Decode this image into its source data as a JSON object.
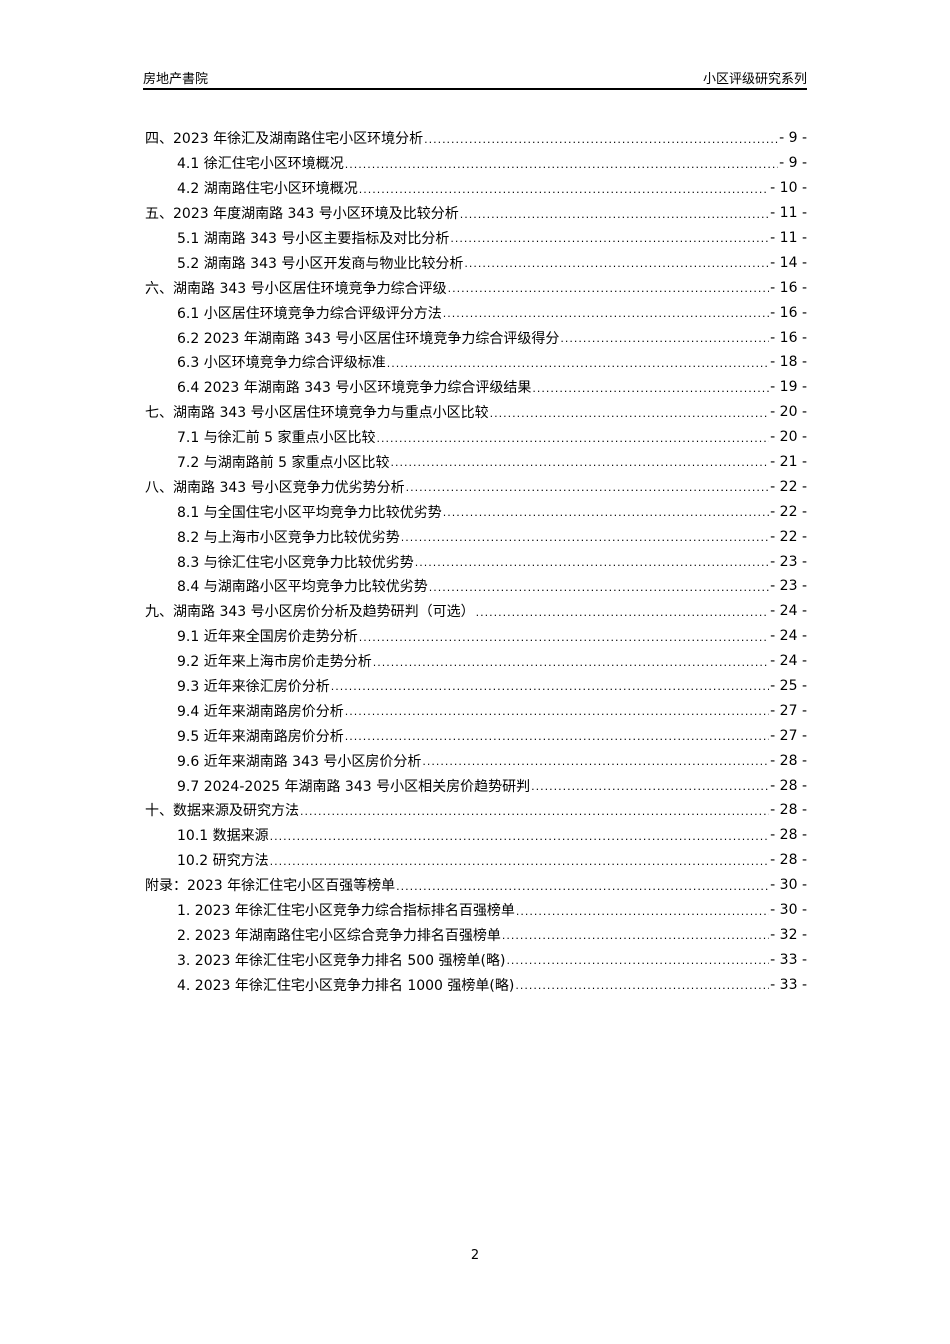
{
  "header": {
    "left": "房地产書院",
    "right": "小区评级研究系列"
  },
  "toc": [
    {
      "level": 1,
      "title": "四、2023 年徐汇及湖南路住宅小区环境分析",
      "page": "- 9 -"
    },
    {
      "level": 2,
      "title": "4.1 徐汇住宅小区环境概况",
      "page": "- 9 -"
    },
    {
      "level": 2,
      "title": "4.2 湖南路住宅小区环境概况",
      "page": "- 10 -"
    },
    {
      "level": 1,
      "title": "五、2023 年度湖南路 343 号小区环境及比较分析",
      "page": "- 11 -"
    },
    {
      "level": 2,
      "title": "5.1 湖南路 343 号小区主要指标及对比分析",
      "page": "- 11 -"
    },
    {
      "level": 2,
      "title": "5.2 湖南路 343 号小区开发商与物业比较分析",
      "page": "- 14 -"
    },
    {
      "level": 1,
      "title": "六、湖南路 343 号小区居住环境竞争力综合评级",
      "page": "- 16 -"
    },
    {
      "level": 2,
      "title": "6.1 小区居住环境竞争力综合评级评分方法",
      "page": "- 16 -"
    },
    {
      "level": 2,
      "title": "6.2 2023 年湖南路 343 号小区居住环境竞争力综合评级得分",
      "page": "- 16 -"
    },
    {
      "level": 2,
      "title": "6.3 小区环境竞争力综合评级标准",
      "page": "- 18 -"
    },
    {
      "level": 2,
      "title": "6.4 2023 年湖南路 343 号小区环境竞争力综合评级结果",
      "page": "- 19 -"
    },
    {
      "level": 1,
      "title": "七、湖南路 343 号小区居住环境竞争力与重点小区比较",
      "page": "- 20 -"
    },
    {
      "level": 2,
      "title": "7.1 与徐汇前 5 家重点小区比较",
      "page": "- 20 -"
    },
    {
      "level": 2,
      "title": "7.2 与湖南路前 5 家重点小区比较",
      "page": "- 21 -"
    },
    {
      "level": 1,
      "title": "八、湖南路 343 号小区竞争力优劣势分析",
      "page": "- 22 -"
    },
    {
      "level": 2,
      "title": "8.1 与全国住宅小区平均竞争力比较优劣势",
      "page": "- 22 -"
    },
    {
      "level": 2,
      "title": "8.2 与上海市小区竞争力比较优劣势",
      "page": "- 22 -"
    },
    {
      "level": 2,
      "title": "8.3 与徐汇住宅小区竞争力比较优劣势",
      "page": "- 23 -"
    },
    {
      "level": 2,
      "title": "8.4 与湖南路小区平均竞争力比较优劣势",
      "page": "- 23 -"
    },
    {
      "level": 1,
      "title": "九、湖南路 343 号小区房价分析及趋势研判（可选）",
      "page": "- 24 -"
    },
    {
      "level": 2,
      "title": "9.1 近年来全国房价走势分析",
      "page": "- 24 -"
    },
    {
      "level": 2,
      "title": "9.2 近年来上海市房价走势分析",
      "page": "- 24 -"
    },
    {
      "level": 2,
      "title": "9.3 近年来徐汇房价分析",
      "page": "- 25 -"
    },
    {
      "level": 2,
      "title": "9.4 近年来湖南路房价分析",
      "page": "- 27 -"
    },
    {
      "level": 2,
      "title": "9.5 近年来湖南路房价分析",
      "page": "- 27 -"
    },
    {
      "level": 2,
      "title": "9.6 近年来湖南路 343 号小区房价分析",
      "page": "- 28 -"
    },
    {
      "level": 2,
      "title": "9.7 2024-2025 年湖南路 343 号小区相关房价趋势研判",
      "page": "- 28 -"
    },
    {
      "level": 1,
      "title": "十、数据来源及研究方法",
      "page": "- 28 -"
    },
    {
      "level": 2,
      "title": "10.1 数据来源",
      "page": "- 28 -"
    },
    {
      "level": 2,
      "title": "10.2 研究方法",
      "page": "- 28 -"
    },
    {
      "level": 1,
      "title": "附录：2023 年徐汇住宅小区百强等榜单",
      "page": "- 30 -"
    },
    {
      "level": 2,
      "title": "1. 2023 年徐汇住宅小区竞争力综合指标排名百强榜单",
      "page": "- 30 -"
    },
    {
      "level": 2,
      "title": "2. 2023 年湖南路住宅小区综合竞争力排名百强榜单",
      "page": "- 32 -"
    },
    {
      "level": 2,
      "title": "3. 2023 年徐汇住宅小区竞争力排名 500 强榜单(略)",
      "page": "- 33 -"
    },
    {
      "level": 2,
      "title": "4. 2023 年徐汇住宅小区竞争力排名 1000 强榜单(略)",
      "page": "- 33 -"
    }
  ],
  "footer": {
    "page_number": "2"
  }
}
